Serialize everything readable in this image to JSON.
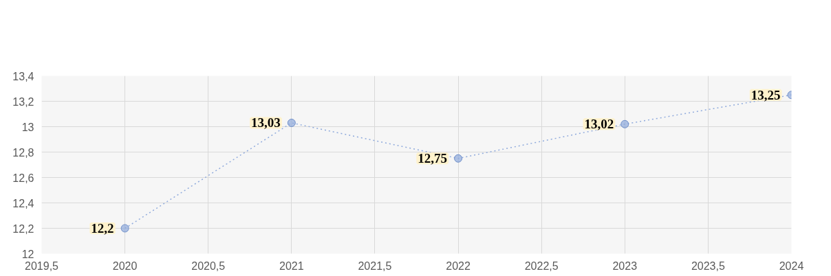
{
  "chart_data": {
    "type": "line",
    "x": [
      2020,
      2021,
      2022,
      2023,
      2024
    ],
    "series": [
      {
        "color": "#8faadc",
        "values": [
          12.2,
          13.03,
          12.75,
          13.02,
          13.25
        ],
        "value_labels": [
          "12,2",
          "13,03",
          "12,75",
          "13,02",
          "13,25"
        ]
      }
    ],
    "xlim": [
      2019.5,
      2024
    ],
    "ylim": [
      12,
      13.4
    ],
    "xticks": [
      {
        "value": 2019.5,
        "label": "2019,5"
      },
      2020,
      {
        "value": 2020.5,
        "label": "2020,5"
      },
      2021,
      {
        "value": 2021.5,
        "label": "2021,5"
      },
      2022,
      {
        "value": 2022.5,
        "label": "2022,5"
      },
      2023,
      {
        "value": 2023.5,
        "label": "2023,5"
      },
      2024
    ],
    "yticks": [
      12,
      {
        "value": 12.2,
        "label": "12,2"
      },
      {
        "value": 12.4,
        "label": "12,4"
      },
      {
        "value": 12.6,
        "label": "12,6"
      },
      {
        "value": 12.8,
        "label": "12,8"
      },
      13,
      {
        "value": 13.2,
        "label": "13,2"
      },
      {
        "value": 13.4,
        "label": "13,4"
      }
    ],
    "grid": true,
    "marker": "circle",
    "line_style": "dotted"
  }
}
